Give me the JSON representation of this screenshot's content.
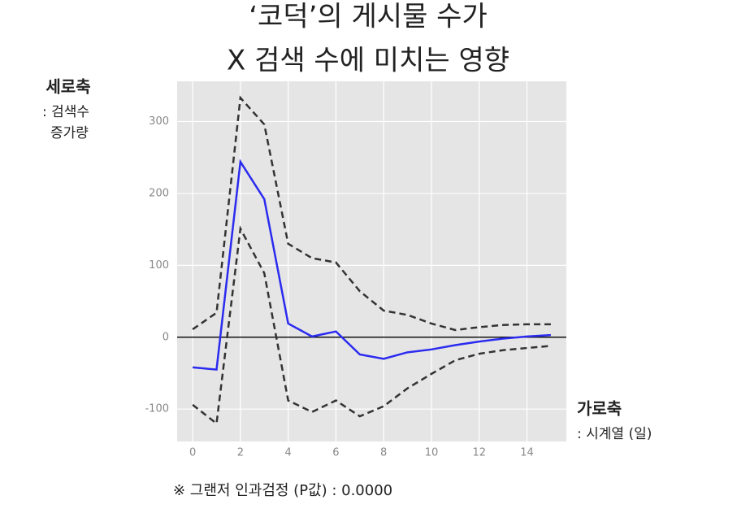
{
  "chart_data": {
    "type": "line",
    "title": [
      "‘코덕’의 게시물 수가",
      "X 검색 수에 미치는 영향"
    ],
    "y_label": [
      "세로축",
      ": 검색수",
      "증가량"
    ],
    "x_label": [
      "가로축",
      ": 시계열 (일)"
    ],
    "footnote": "※ 그랜저 인과검정 (P값) : 0.0000",
    "x": [
      0,
      1,
      2,
      3,
      4,
      5,
      6,
      7,
      8,
      9,
      10,
      11,
      12,
      13,
      14,
      15
    ],
    "series": [
      {
        "color": "#2b2bf0",
        "dashed": false,
        "values": [
          -42,
          -45,
          244,
          192,
          19,
          1,
          8,
          -24,
          -30,
          -21,
          -17,
          -11,
          -6,
          -2,
          1,
          3
        ]
      },
      {
        "color": "#333333",
        "dashed": true,
        "values": [
          11,
          34,
          333,
          296,
          130,
          110,
          104,
          64,
          37,
          31,
          19,
          10,
          14,
          17,
          18,
          18
        ]
      },
      {
        "color": "#333333",
        "dashed": true,
        "values": [
          -94,
          -120,
          151,
          89,
          -88,
          -104,
          -88,
          -110,
          -96,
          -71,
          -51,
          -32,
          -23,
          -18,
          -15,
          -12
        ]
      }
    ],
    "reference_line": 0,
    "xlim": [
      -0.65,
      15.65
    ],
    "xticks": [
      0,
      2,
      4,
      6,
      8,
      10,
      12,
      14
    ],
    "ylim": [
      -145,
      356
    ],
    "yticks": [
      -100,
      0,
      100,
      200,
      300
    ],
    "grid": true
  }
}
